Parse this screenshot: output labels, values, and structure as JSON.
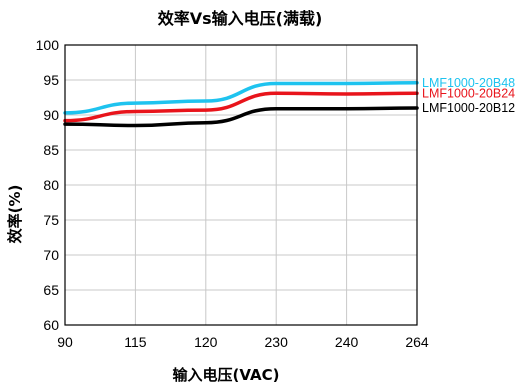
{
  "chart_data": {
    "type": "line",
    "title": "效率Vs输入电压(满载)",
    "xlabel": "输入电压(VAC)",
    "ylabel": "效率(%)",
    "categories": [
      "90",
      "115",
      "120",
      "230",
      "240",
      "264"
    ],
    "ylim": [
      60,
      100
    ],
    "yticks": [
      60,
      65,
      70,
      75,
      80,
      85,
      90,
      95,
      100
    ],
    "grid": true,
    "legend_position": "right",
    "series": [
      {
        "name": "LMF1000-20B48",
        "color": "#1ec3ef",
        "values": [
          90.3,
          91.7,
          92.0,
          94.5,
          94.5,
          94.6
        ]
      },
      {
        "name": "LMF1000-20B24",
        "color": "#e8141b",
        "values": [
          89.2,
          90.5,
          90.7,
          93.1,
          93.0,
          93.1
        ]
      },
      {
        "name": "LMF1000-20B12",
        "color": "#000000",
        "values": [
          88.7,
          88.5,
          88.9,
          90.9,
          90.9,
          91.0
        ]
      }
    ]
  }
}
